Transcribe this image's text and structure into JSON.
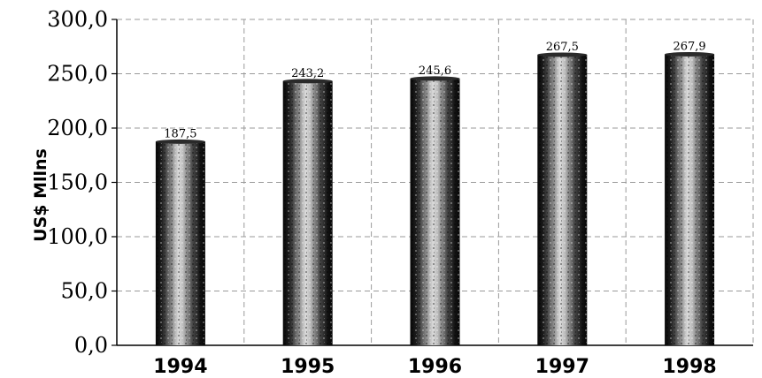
{
  "chart_data": {
    "type": "bar",
    "title": "",
    "xlabel": "",
    "ylabel": "US$ Mllns",
    "categories": [
      "1994",
      "1995",
      "1996",
      "1997",
      "1998"
    ],
    "values": [
      187.5,
      243.2,
      245.6,
      267.5,
      267.9
    ],
    "value_labels": [
      "187,5",
      "243,2",
      "245,6",
      "267,5",
      "267,9"
    ],
    "ylim": [
      0,
      300
    ],
    "yticks": [
      0,
      50,
      100,
      150,
      200,
      250,
      300
    ],
    "ytick_labels": [
      "0,0",
      "50,0",
      "100,0",
      "150,0",
      "200,0",
      "250,0",
      "300,0"
    ],
    "grid": true,
    "legend": "none",
    "bar_style": "dark cylindrical bars with speckled texture",
    "colors": {
      "bar_dark": "#111111",
      "bar_mid": "#888888",
      "bar_light": "#e8e8e8",
      "grid": "#9a9a9a"
    }
  }
}
